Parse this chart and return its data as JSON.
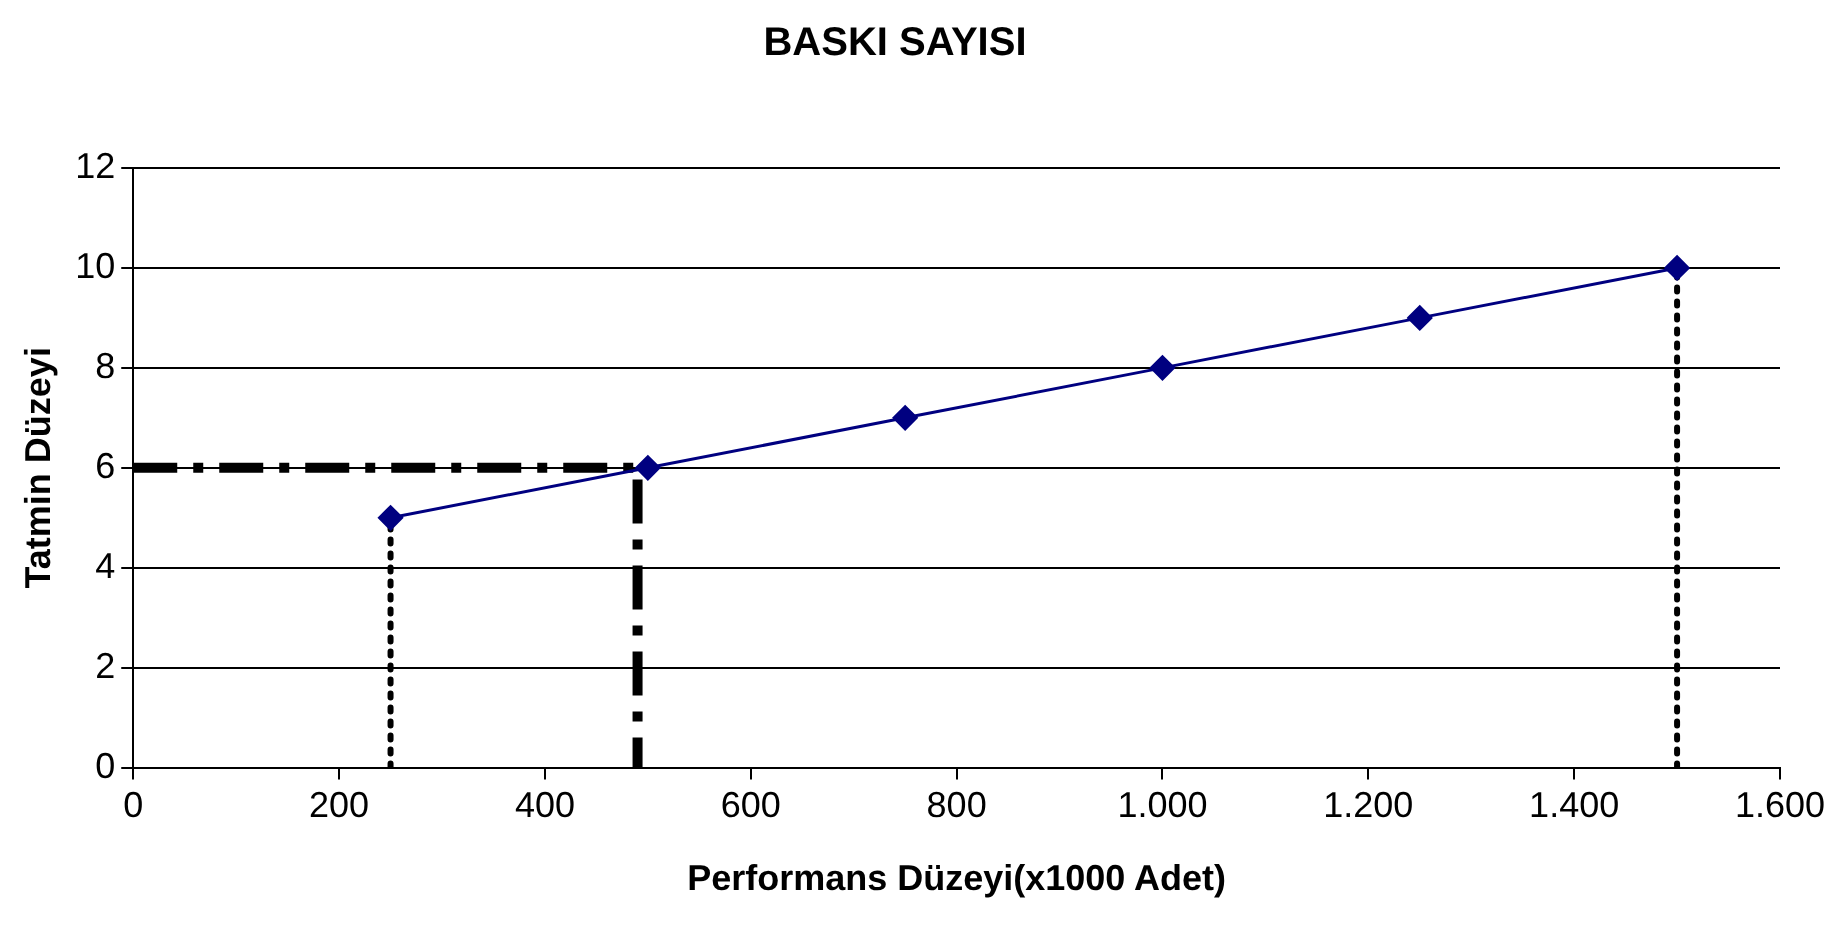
{
  "chart_data": {
    "type": "line",
    "title": "BASKI SAYISI",
    "xlabel": "Performans Düzeyi(x1000 Adet)",
    "ylabel": "Tatmin Düzeyi",
    "xlim": [
      0,
      1600
    ],
    "xticks": [
      0,
      200,
      400,
      600,
      800,
      {
        "value": 1000,
        "label": "1.000"
      },
      {
        "value": 1200,
        "label": "1.200"
      },
      {
        "value": 1400,
        "label": "1.400"
      },
      {
        "value": 1600,
        "label": "1.600"
      }
    ],
    "ylim": [
      0,
      12
    ],
    "yticks": [
      0,
      2,
      4,
      6,
      8,
      10,
      12
    ],
    "grid": "y",
    "legend": false,
    "series": [
      {
        "x": [
          250,
          500,
          750,
          1000,
          1250,
          1500
        ],
        "values": [
          5,
          6,
          7,
          8,
          9,
          10
        ],
        "color": "#000080",
        "marker": "diamond",
        "line_style": "solid"
      },
      {
        "x": [
          250,
          250
        ],
        "values": [
          0,
          5
        ],
        "color": "#000000",
        "marker": "none",
        "line_style": "dotted"
      },
      {
        "x": [
          1500,
          1500
        ],
        "values": [
          0,
          10
        ],
        "color": "#000000",
        "marker": "none",
        "line_style": "dotted"
      },
      {
        "x": [
          0,
          490,
          490
        ],
        "values": [
          6,
          6,
          0
        ],
        "color": "#000000",
        "marker": "none",
        "line_style": "dashed"
      }
    ]
  }
}
